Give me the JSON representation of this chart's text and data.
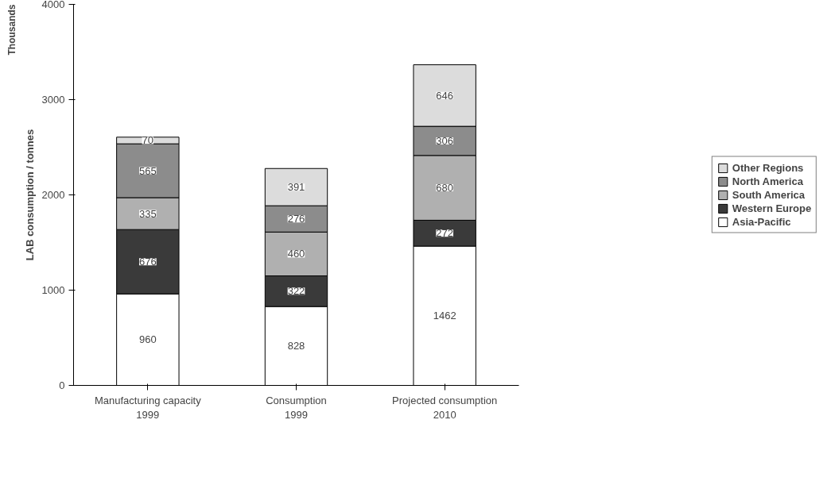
{
  "chart_data": {
    "type": "bar",
    "stacked": true,
    "ylabel": "LAB consumption / tonnes",
    "annotations": [
      "Thousands"
    ],
    "categories": [
      "Manufacturing capacity\n1999",
      "Consumption\n1999",
      "Projected consumption\n2010"
    ],
    "series": [
      {
        "name": "Asia-Pacific",
        "color": "#ffffff",
        "values": [
          960,
          828,
          1462
        ]
      },
      {
        "name": "Western Europe",
        "color": "#3a3a3a",
        "values": [
          676,
          322,
          272
        ]
      },
      {
        "name": "South America",
        "color": "#b0b0b0",
        "values": [
          335,
          460,
          680
        ]
      },
      {
        "name": "North America",
        "color": "#8c8c8c",
        "values": [
          565,
          276,
          306
        ]
      },
      {
        "name": "Other Regions",
        "color": "#dcdcdc",
        "values": [
          70,
          391,
          646
        ]
      }
    ],
    "ylim": [
      0,
      4000
    ],
    "yticks": [
      0,
      1000,
      2000,
      3000,
      4000
    ],
    "grid": false,
    "legend": "right",
    "data_labels": true
  }
}
